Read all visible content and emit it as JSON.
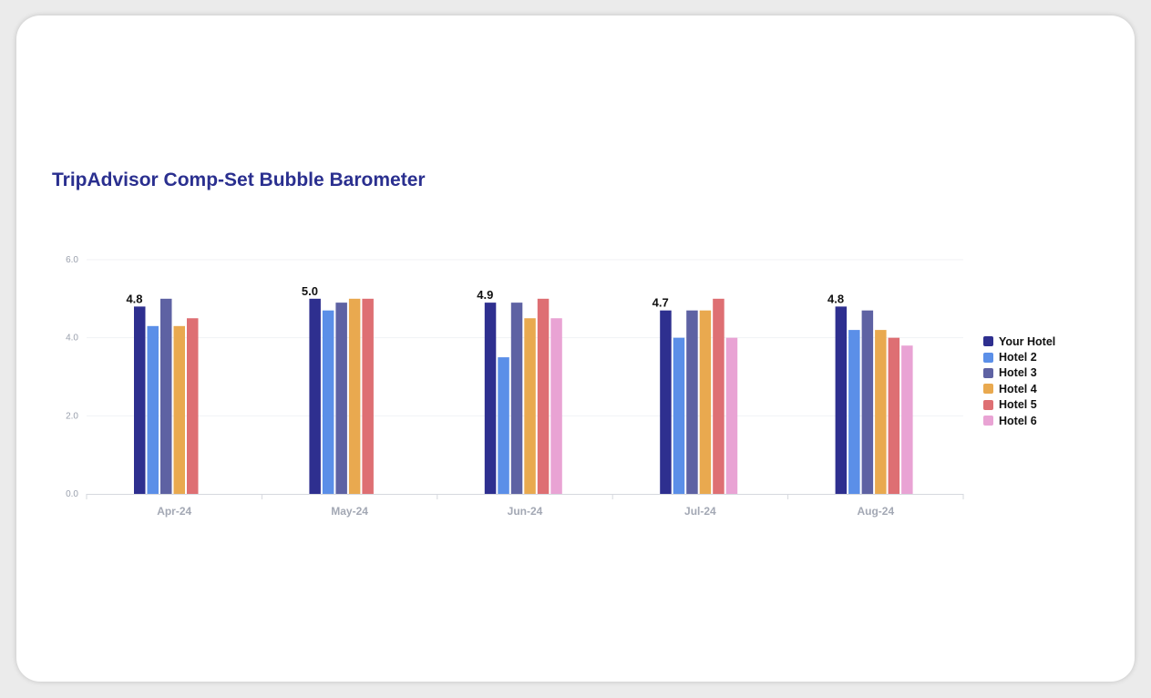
{
  "chart_data": {
    "type": "bar",
    "title": "TripAdvisor Comp-Set Bubble Barometer",
    "categories": [
      "Apr-24",
      "May-24",
      "Jun-24",
      "Jul-24",
      "Aug-24"
    ],
    "series": [
      {
        "name": "Your Hotel",
        "color": "#2e2f8f",
        "values": [
          4.8,
          5.0,
          4.9,
          4.7,
          4.8
        ]
      },
      {
        "name": "Hotel 2",
        "color": "#5b8fe8",
        "values": [
          4.3,
          4.7,
          3.5,
          4.0,
          4.2
        ]
      },
      {
        "name": "Hotel 3",
        "color": "#5e62a3",
        "values": [
          5.0,
          4.9,
          4.9,
          4.7,
          4.7
        ]
      },
      {
        "name": "Hotel 4",
        "color": "#e9a94f",
        "values": [
          4.3,
          5.0,
          4.5,
          4.7,
          4.2
        ]
      },
      {
        "name": "Hotel 5",
        "color": "#de6f73",
        "values": [
          4.5,
          5.0,
          5.0,
          5.0,
          4.0
        ]
      },
      {
        "name": "Hotel 6",
        "color": "#e9a3d4",
        "values": [
          null,
          null,
          4.5,
          4.0,
          3.8
        ]
      }
    ],
    "data_labels": [
      "4.8",
      "5.0",
      "4.9",
      "4.7",
      "4.8"
    ],
    "y_ticks": [
      "0.0",
      "2.0",
      "4.0",
      "6.0"
    ],
    "ylim": [
      0,
      6
    ],
    "legend_position": "right",
    "grid": true
  }
}
